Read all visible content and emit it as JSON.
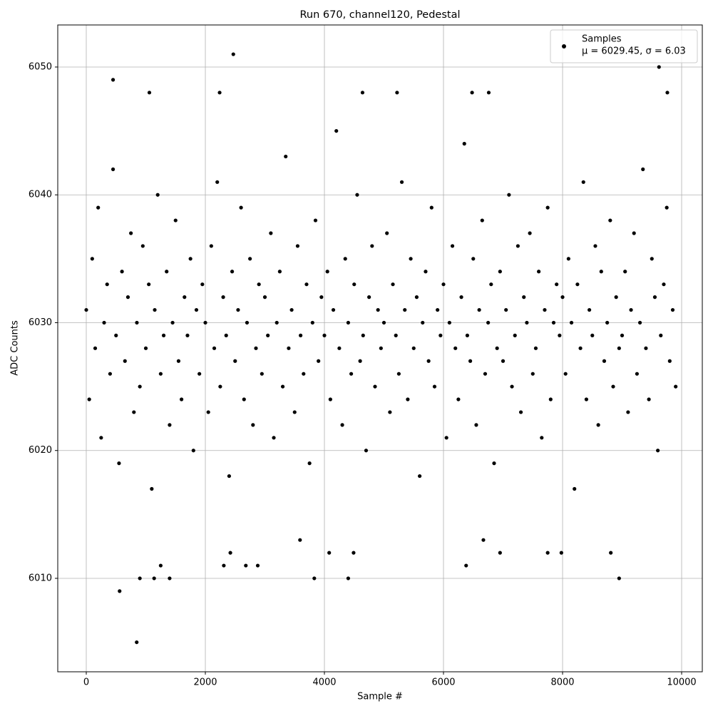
{
  "chart_data": {
    "type": "scatter",
    "title": "Run 670, channel120, Pedestal",
    "xlabel": "Sample #",
    "ylabel": "ADC Counts",
    "xlim": [
      -479,
      10347
    ],
    "ylim": [
      6002.69,
      6053.29
    ],
    "xticks": [
      0,
      2000,
      4000,
      6000,
      8000,
      10000
    ],
    "yticks": [
      6010,
      6020,
      6030,
      6040,
      6050
    ],
    "grid": true,
    "legend_position": "upper right",
    "legend_note": "μ = 6029.45, σ = 6.03",
    "series": [
      {
        "name": "Samples",
        "color": "#000000",
        "x": [
          0,
          50,
          100,
          150,
          200,
          250,
          300,
          350,
          400,
          450,
          500,
          550,
          600,
          650,
          700,
          750,
          800,
          850,
          900,
          950,
          1000,
          1050,
          1100,
          1150,
          1200,
          1250,
          1300,
          1350,
          1400,
          1450,
          1500,
          1550,
          1600,
          1650,
          1700,
          1750,
          1800,
          1850,
          1900,
          1950,
          2000,
          2050,
          2100,
          2150,
          2200,
          2250,
          2300,
          2350,
          2400,
          2450,
          2500,
          2550,
          2600,
          2650,
          2700,
          2750,
          2800,
          2850,
          2900,
          2950,
          3000,
          3050,
          3100,
          3150,
          3200,
          3250,
          3300,
          3350,
          3400,
          3450,
          3500,
          3550,
          3600,
          3650,
          3700,
          3750,
          3800,
          3850,
          3900,
          3950,
          4000,
          4050,
          4100,
          4150,
          4200,
          4250,
          4300,
          4350,
          4400,
          4450,
          4500,
          4550,
          4600,
          4650,
          4700,
          4750,
          4800,
          4850,
          4900,
          4950,
          5000,
          5050,
          5100,
          5150,
          5200,
          5250,
          5300,
          5350,
          5400,
          5450,
          5500,
          5550,
          5600,
          5650,
          5700,
          5750,
          5800,
          5850,
          5900,
          5950,
          6000,
          6050,
          6100,
          6150,
          6200,
          6250,
          6300,
          6350,
          6400,
          6450,
          6500,
          6550,
          6600,
          6650,
          6700,
          6750,
          6800,
          6850,
          6900,
          6950,
          7000,
          7050,
          7100,
          7150,
          7200,
          7250,
          7300,
          7350,
          7400,
          7450,
          7500,
          7550,
          7600,
          7650,
          7700,
          7750,
          7800,
          7850,
          7900,
          7950,
          8000,
          8050,
          8100,
          8150,
          8200,
          8250,
          8300,
          8350,
          8400,
          8450,
          8500,
          8550,
          8600,
          8650,
          8700,
          8750,
          8800,
          8850,
          8900,
          8950,
          9000,
          9050,
          9100,
          9150,
          9200,
          9250,
          9300,
          9350,
          9400,
          9450,
          9500,
          9550,
          9600,
          9650,
          9700,
          9750,
          9800,
          9850,
          9900,
          847,
          560,
          900,
          1140,
          1400,
          3830,
          4400,
          8950,
          2470,
          9620,
          450,
          1060,
          2240,
          4640,
          5220,
          6480,
          6760,
          9760,
          1250,
          2310,
          2680,
          2880,
          6380,
          2420,
          4080,
          4490,
          6950,
          7750,
          7980,
          8810,
          3590,
          6670
        ],
        "values": [
          6031,
          6024,
          6035,
          6028,
          6039,
          6021,
          6030,
          6033,
          6026,
          6042,
          6029,
          6019,
          6034,
          6027,
          6032,
          6037,
          6023,
          6030,
          6025,
          6036,
          6028,
          6033,
          6017,
          6031,
          6040,
          6026,
          6029,
          6034,
          6022,
          6030,
          6038,
          6027,
          6024,
          6032,
          6029,
          6035,
          6020,
          6031,
          6026,
          6033,
          6030,
          6023,
          6036,
          6028,
          6041,
          6025,
          6032,
          6029,
          6018,
          6034,
          6027,
          6031,
          6039,
          6024,
          6030,
          6035,
          6022,
          6028,
          6033,
          6026,
          6032,
          6029,
          6037,
          6021,
          6030,
          6034,
          6025,
          6043,
          6028,
          6031,
          6023,
          6036,
          6029,
          6026,
          6033,
          6019,
          6030,
          6038,
          6027,
          6032,
          6029,
          6034,
          6024,
          6031,
          6045,
          6028,
          6022,
          6035,
          6030,
          6026,
          6033,
          6040,
          6027,
          6029,
          6020,
          6032,
          6036,
          6025,
          6031,
          6028,
          6030,
          6037,
          6023,
          6033,
          6029,
          6026,
          6041,
          6031,
          6024,
          6035,
          6028,
          6032,
          6018,
          6030,
          6034,
          6027,
          6039,
          6025,
          6031,
          6029,
          6033,
          6021,
          6030,
          6036,
          6028,
          6024,
          6032,
          6044,
          6029,
          6027,
          6035,
          6022,
          6031,
          6038,
          6026,
          6030,
          6033,
          6019,
          6028,
          6034,
          6027,
          6031,
          6040,
          6025,
          6029,
          6036,
          6023,
          6032,
          6030,
          6037,
          6026,
          6028,
          6034,
          6021,
          6031,
          6039,
          6024,
          6030,
          6033,
          6029,
          6032,
          6026,
          6035,
          6030,
          6017,
          6033,
          6028,
          6041,
          6024,
          6031,
          6029,
          6036,
          6022,
          6034,
          6027,
          6030,
          6038,
          6025,
          6032,
          6028,
          6029,
          6034,
          6023,
          6031,
          6037,
          6026,
          6030,
          6042,
          6028,
          6024,
          6035,
          6032,
          6020,
          6029,
          6033,
          6039,
          6027,
          6031,
          6025,
          6005,
          6009,
          6010,
          6010,
          6010,
          6010,
          6010,
          6010,
          6051,
          6050,
          6049,
          6048,
          6048,
          6048,
          6048,
          6048,
          6048,
          6048,
          6011,
          6011,
          6011,
          6011,
          6011,
          6012,
          6012,
          6012,
          6012,
          6012,
          6012,
          6012,
          6013,
          6013
        ]
      }
    ]
  }
}
